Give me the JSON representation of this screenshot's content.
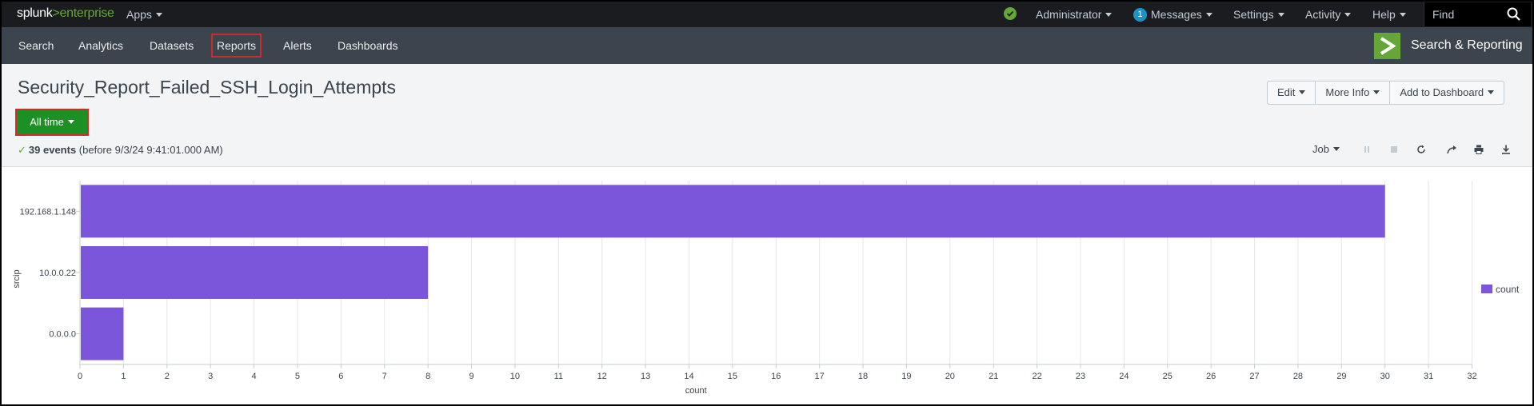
{
  "logo": {
    "splunk": "splunk",
    "gt": ">",
    "enterprise": "enterprise"
  },
  "topbar": {
    "apps": "Apps",
    "user": "Administrator",
    "messages_count": "1",
    "messages": "Messages",
    "settings": "Settings",
    "activity": "Activity",
    "help": "Help",
    "find_placeholder": "Find"
  },
  "nav": {
    "items": [
      "Search",
      "Analytics",
      "Datasets",
      "Reports",
      "Alerts",
      "Dashboards"
    ],
    "active": "Reports",
    "app_name": "Search & Reporting"
  },
  "report": {
    "title": "Security_Report_Failed_SSH_Login_Attempts",
    "buttons": [
      "Edit",
      "More Info",
      "Add to Dashboard"
    ],
    "time_range": "All time",
    "events_count": "39 events",
    "events_suffix": "(before 9/3/24 9:41:01.000 AM)",
    "job_label": "Job",
    "job_icons": [
      "pause-icon",
      "stop-icon",
      "refresh-icon",
      "share-icon",
      "print-icon",
      "download-icon"
    ]
  },
  "colors": {
    "accent": "#65a637",
    "bar": "#7b56db",
    "active_outline": "#d42c2c",
    "time_button": "#1c8f25"
  },
  "chart_data": {
    "type": "bar",
    "orientation": "horizontal",
    "categories": [
      "192.168.1.148",
      "10.0.0.22",
      "0.0.0.0"
    ],
    "series": [
      {
        "name": "count",
        "values": [
          30,
          8,
          1
        ]
      }
    ],
    "xlabel": "count",
    "ylabel": "srcip",
    "xlim": [
      0,
      32
    ],
    "xticks": [
      0,
      1,
      2,
      3,
      4,
      5,
      6,
      7,
      8,
      9,
      10,
      11,
      12,
      13,
      14,
      15,
      16,
      17,
      18,
      19,
      20,
      21,
      22,
      23,
      24,
      25,
      26,
      27,
      28,
      29,
      30,
      31,
      32
    ],
    "grid": true,
    "legend_position": "right"
  }
}
